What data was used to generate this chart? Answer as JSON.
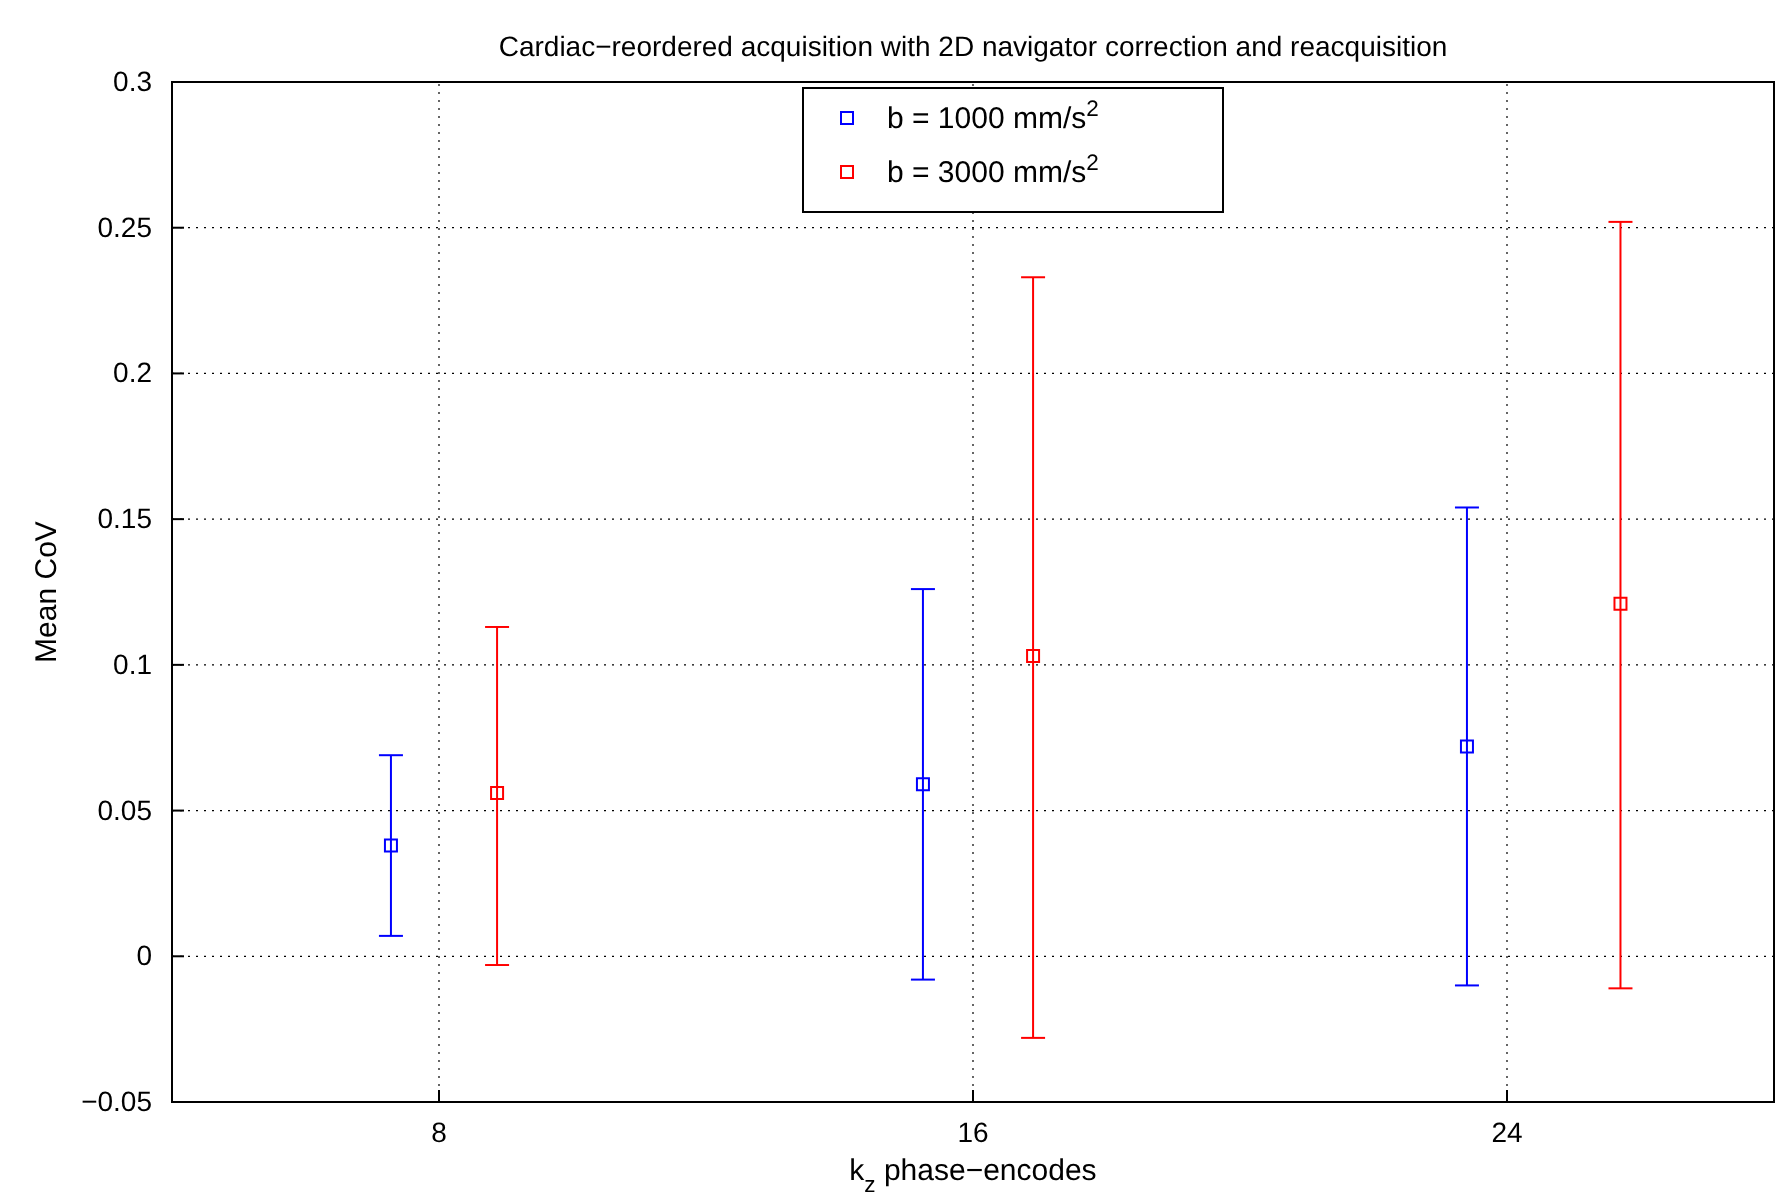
{
  "chart_data": {
    "type": "scatter",
    "title": "Cardiac−reordered acquisition with 2D navigator correction and reacquisition",
    "xlabel": "k$_{z}$ phase−encodes",
    "ylabel": "Mean CoV",
    "xlim": [
      4,
      28
    ],
    "xticks": [
      8,
      16,
      24
    ],
    "ylim": [
      -0.05,
      0.3
    ],
    "yticks": [
      {
        "value": -0.05,
        "label": "−0.05"
      },
      0,
      0.05,
      0.1,
      0.15,
      0.2,
      0.25,
      0.3
    ],
    "grid": true,
    "legend": "top",
    "marker": "square",
    "series": [
      {
        "name": "b = 1000 mm/s$^{2}$",
        "color": "#0000ff",
        "x": [
          7.28,
          15.25,
          23.4
        ],
        "values": [
          0.038,
          0.059,
          0.072
        ],
        "errors": [
          [
            0.007,
            0.069
          ],
          [
            -0.008,
            0.126
          ],
          [
            -0.01,
            0.154
          ]
        ]
      },
      {
        "name": "b = 3000 mm/s$^{2}$",
        "color": "#ff0000",
        "x": [
          8.87,
          16.9,
          25.7
        ],
        "values": [
          0.056,
          0.103,
          0.121
        ],
        "errors": [
          [
            -0.003,
            0.113
          ],
          [
            -0.028,
            0.233
          ],
          [
            -0.011,
            0.252
          ]
        ]
      }
    ]
  }
}
